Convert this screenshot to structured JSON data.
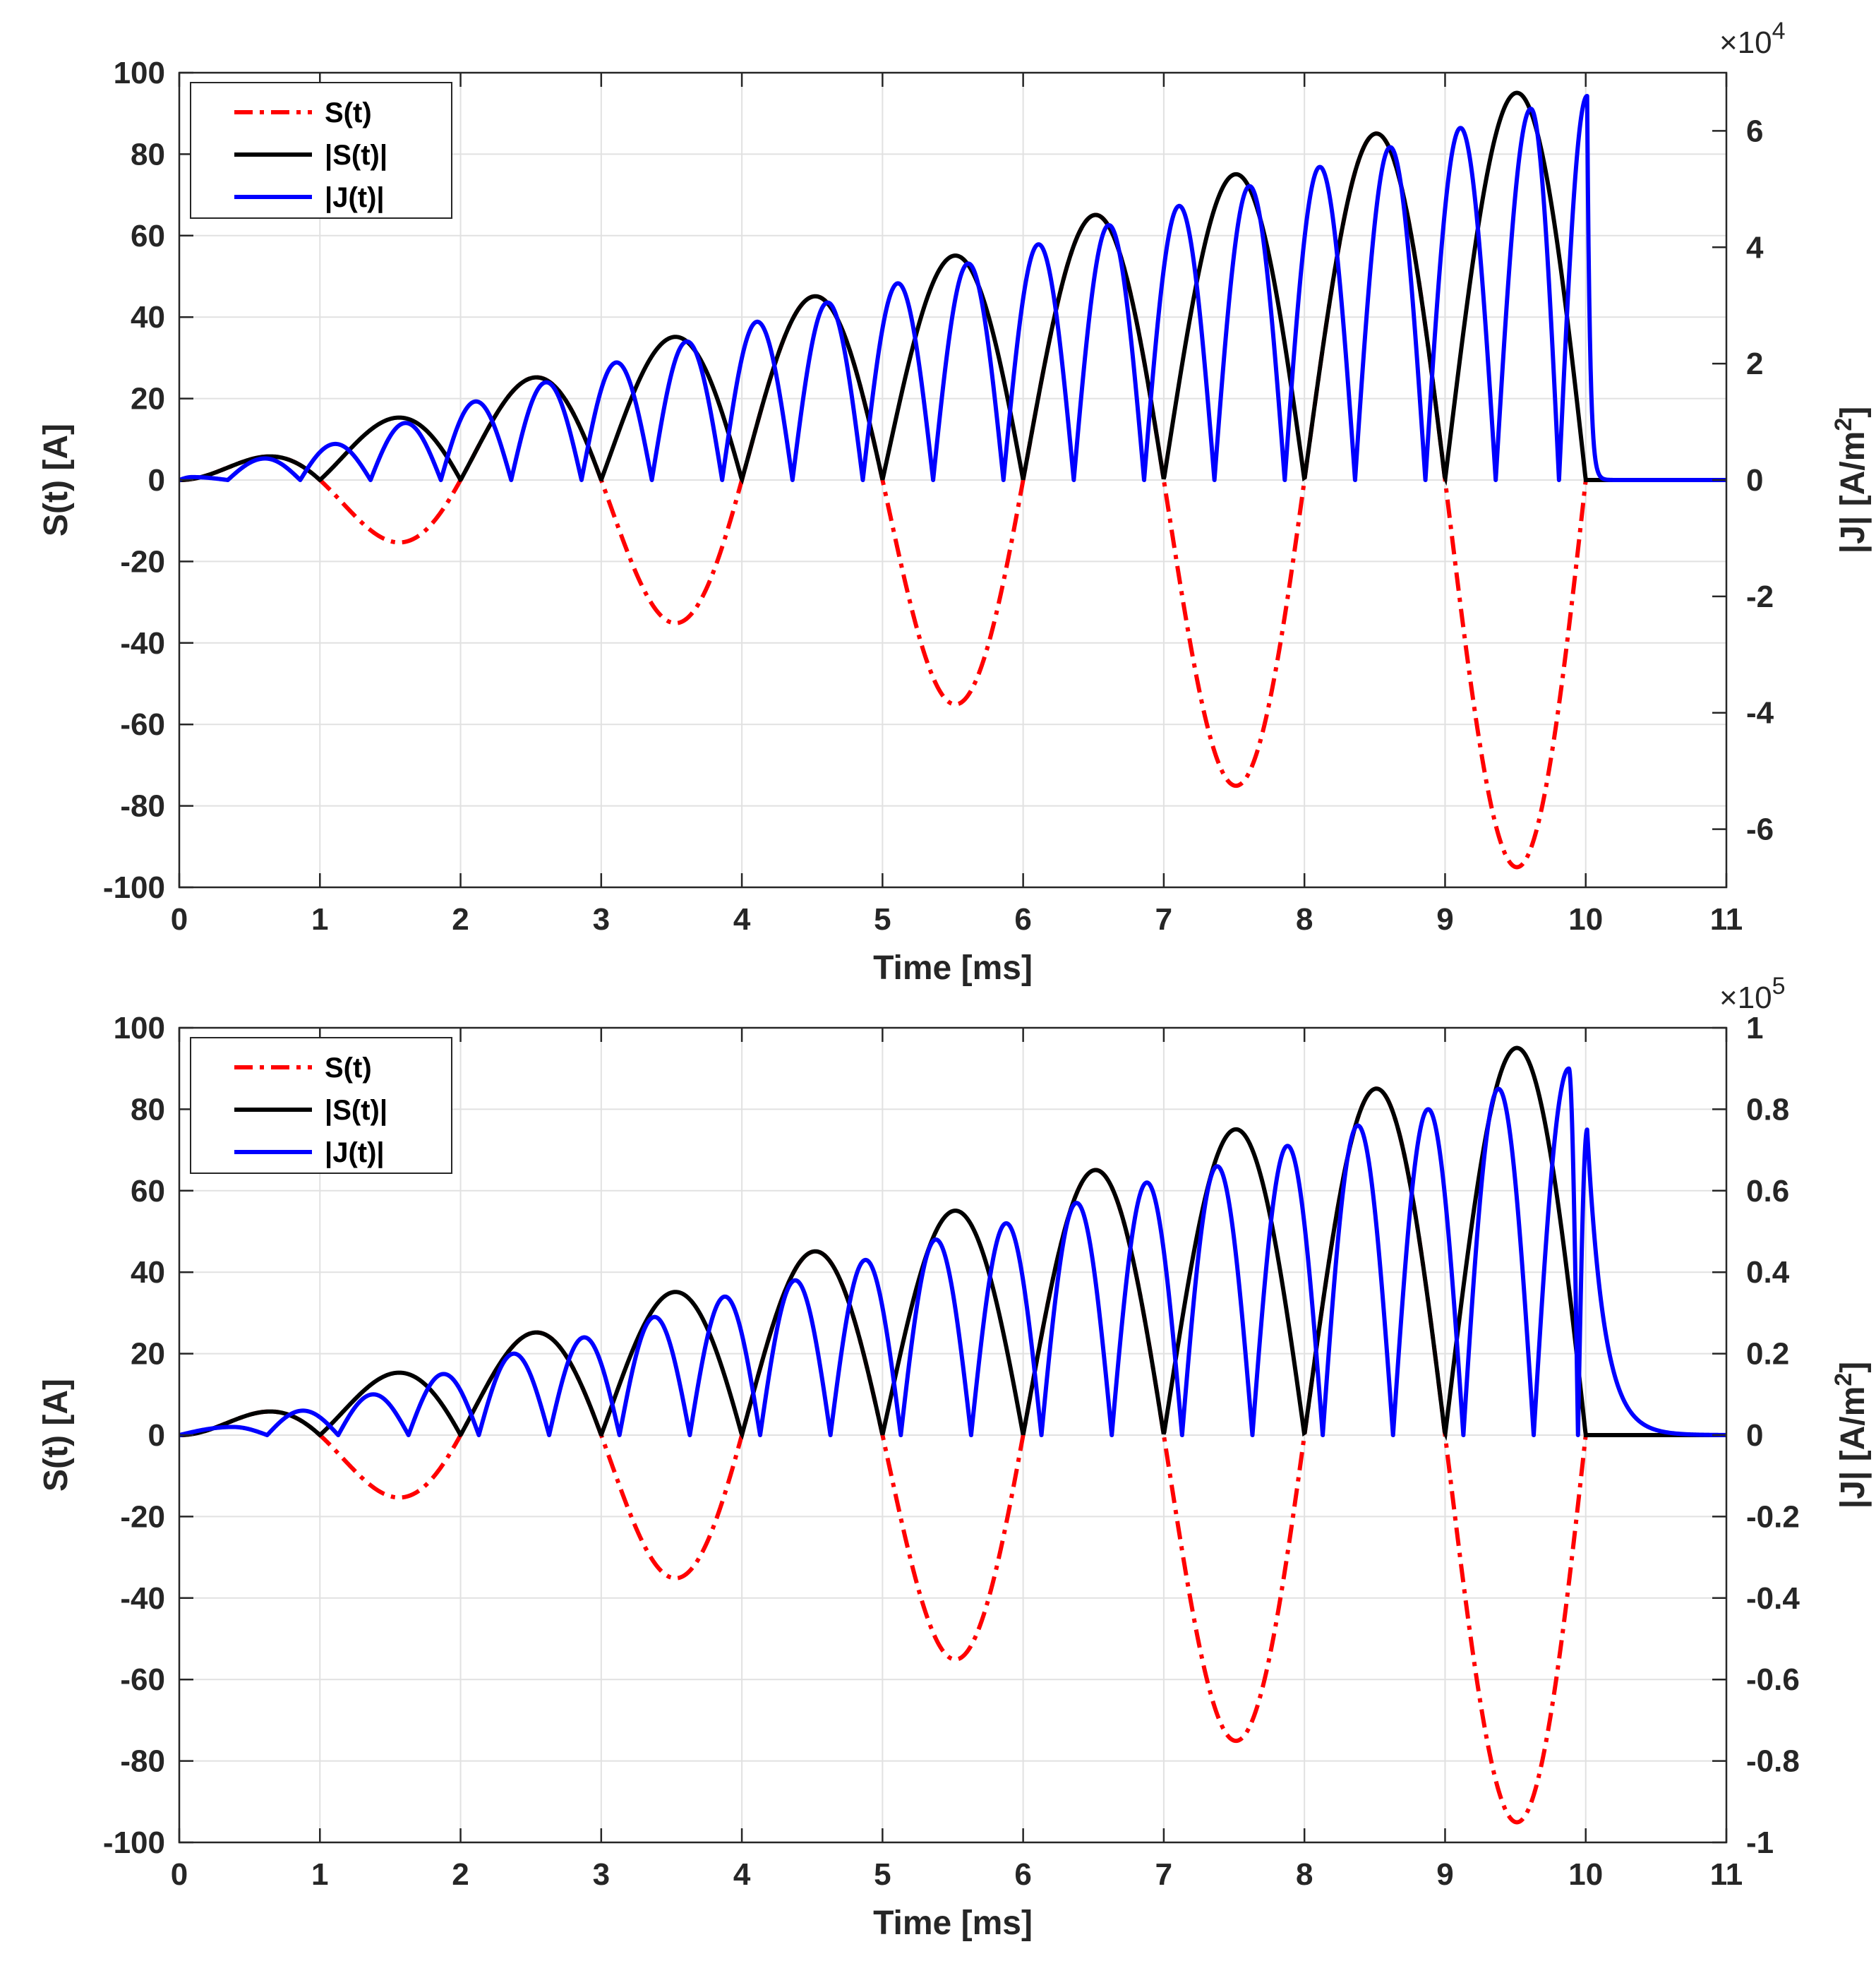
{
  "chart_data": [
    {
      "type": "line",
      "panel": "top",
      "xlabel": "Time [ms]",
      "ylabel_left": "S(t) [A]",
      "ylabel_right_main": "|J|  [A/m",
      "ylabel_right_sup": "2",
      "ylabel_right_close": "]",
      "xlim": [
        0,
        11
      ],
      "ylim_left": [
        -100,
        100
      ],
      "ylim_right": [
        -7,
        7
      ],
      "right_exponent_base": "×10",
      "right_exponent_power": "4",
      "x_ticks": [
        "0",
        "1",
        "2",
        "3",
        "4",
        "5",
        "6",
        "7",
        "8",
        "9",
        "10",
        "11"
      ],
      "y_ticks_left": [
        "100",
        "80",
        "60",
        "40",
        "20",
        "0",
        "-20",
        "-40",
        "-60",
        "-80",
        "-100"
      ],
      "y_ticks_right": [
        "6",
        "4",
        "2",
        "0",
        "-2",
        "-4",
        "-6"
      ],
      "grid": true,
      "legend_position": "top-left",
      "legend": [
        "S(t)",
        "|S(t)|",
        "|J(t)|"
      ],
      "signal": {
        "description": "S(t) = 10 * t * sin(2*pi*t/2) for 0 <= t <= 10 ms, 0 after",
        "amplitude_slope": 10,
        "period_ms": 2,
        "end_ms": 10
      },
      "series": [
        {
          "name": "S(t)",
          "color": "#ff0000",
          "style": "dash-dot",
          "axis": "left"
        },
        {
          "name": "|S(t)|",
          "color": "#000000",
          "style": "solid",
          "axis": "left"
        },
        {
          "name": "|J(t)|",
          "color": "#0000ff",
          "style": "solid",
          "axis": "right",
          "peak_times_ms": [
            0.09,
            0.61,
            1.11,
            1.61,
            2.11,
            2.61,
            3.11,
            3.61,
            4.11,
            4.61,
            5.11,
            5.61,
            6.11,
            6.61,
            7.11,
            7.61,
            8.11,
            8.61,
            9.11,
            9.61,
            10.01
          ],
          "peak_values_e4": [
            0.05,
            0.37,
            0.62,
            0.98,
            1.35,
            1.68,
            2.02,
            2.38,
            2.72,
            3.05,
            3.38,
            3.72,
            4.05,
            4.38,
            4.71,
            5.05,
            5.38,
            5.72,
            6.05,
            6.38,
            6.6
          ],
          "decay_tau_ms": 0.02
        }
      ]
    },
    {
      "type": "line",
      "panel": "bottom",
      "xlabel": "Time [ms]",
      "ylabel_left": "S(t) [A]",
      "ylabel_right_main": "|J|  [A/m",
      "ylabel_right_sup": "2",
      "ylabel_right_close": "]",
      "xlim": [
        0,
        11
      ],
      "ylim_left": [
        -100,
        100
      ],
      "ylim_right": [
        -1,
        1
      ],
      "right_exponent_base": "×10",
      "right_exponent_power": "5",
      "x_ticks": [
        "0",
        "1",
        "2",
        "3",
        "4",
        "5",
        "6",
        "7",
        "8",
        "9",
        "10",
        "11"
      ],
      "y_ticks_left": [
        "100",
        "80",
        "60",
        "40",
        "20",
        "0",
        "-20",
        "-40",
        "-60",
        "-80",
        "-100"
      ],
      "y_ticks_right": [
        "1",
        "0.8",
        "0.6",
        "0.4",
        "0.2",
        "0",
        "-0.2",
        "-0.4",
        "-0.6",
        "-0.8",
        "-1"
      ],
      "grid": true,
      "legend_position": "top-left",
      "legend": [
        "S(t)",
        "|S(t)|",
        "|J(t)|"
      ],
      "signal": {
        "description": "S(t) = 10 * t * sin(2*pi*t/2) for 0 <= t <= 10 ms, 0 after",
        "amplitude_slope": 10,
        "period_ms": 2,
        "end_ms": 10
      },
      "series": [
        {
          "name": "S(t)",
          "color": "#ff0000",
          "style": "dash-dot",
          "axis": "left"
        },
        {
          "name": "|S(t)|",
          "color": "#000000",
          "style": "solid",
          "axis": "left"
        },
        {
          "name": "|J(t)|",
          "color": "#0000ff",
          "style": "solid",
          "axis": "right",
          "peak_times_ms": [
            0.38,
            0.88,
            1.38,
            1.88,
            2.38,
            2.88,
            3.38,
            3.88,
            4.38,
            4.88,
            5.38,
            5.88,
            6.38,
            6.88,
            7.38,
            7.88,
            8.38,
            8.88,
            9.38,
            9.88,
            10.01
          ],
          "peak_values_e5": [
            0.02,
            0.06,
            0.1,
            0.15,
            0.2,
            0.24,
            0.29,
            0.34,
            0.38,
            0.43,
            0.48,
            0.52,
            0.57,
            0.62,
            0.66,
            0.71,
            0.76,
            0.8,
            0.85,
            0.9,
            0.75
          ],
          "decay_tau_ms": 0.12
        }
      ]
    }
  ]
}
